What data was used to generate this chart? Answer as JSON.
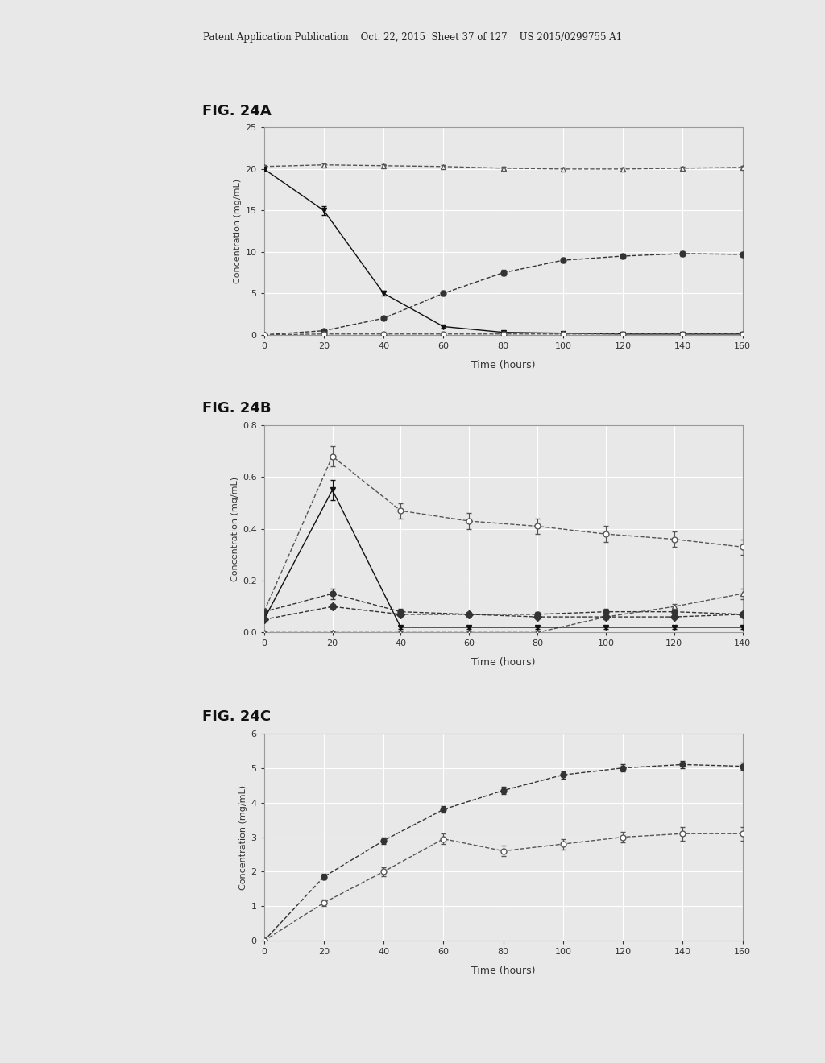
{
  "header_text": "Patent Application Publication    Oct. 22, 2015  Sheet 37 of 127    US 2015/0299755 A1",
  "fig_labels": [
    "FIG. 24A",
    "FIG. 24B",
    "FIG. 24C"
  ],
  "ylabel": "Concentration (mg/mL)",
  "xlabel": "Time (hours)",
  "figA": {
    "xlim": [
      0,
      160
    ],
    "ylim": [
      0,
      25
    ],
    "yticks": [
      0,
      5,
      10,
      15,
      20,
      25
    ],
    "xticks": [
      0,
      20,
      40,
      60,
      80,
      100,
      120,
      140,
      160
    ],
    "series": [
      {
        "name": "triangle_open",
        "x": [
          0,
          20,
          40,
          60,
          80,
          100,
          120,
          140,
          160
        ],
        "y": [
          20.3,
          20.5,
          20.4,
          20.3,
          20.1,
          20.0,
          20.0,
          20.1,
          20.2
        ],
        "yerr": [
          0.2,
          0.2,
          0.2,
          0.2,
          0.2,
          0.2,
          0.2,
          0.2,
          0.2
        ],
        "marker": "^",
        "fillstyle": "none",
        "color": "#555555",
        "linestyle": "--"
      },
      {
        "name": "circle_filled",
        "x": [
          0,
          20,
          40,
          60,
          80,
          100,
          120,
          140,
          160
        ],
        "y": [
          0.0,
          0.5,
          2.0,
          5.0,
          7.5,
          9.0,
          9.5,
          9.8,
          9.7
        ],
        "yerr": [
          0.1,
          0.2,
          0.2,
          0.3,
          0.3,
          0.3,
          0.3,
          0.3,
          0.3
        ],
        "marker": "o",
        "fillstyle": "full",
        "color": "#333333",
        "linestyle": "--"
      },
      {
        "name": "invtriangle_filled",
        "x": [
          0,
          20,
          40,
          60,
          80,
          100,
          120,
          140,
          160
        ],
        "y": [
          20.0,
          15.0,
          5.0,
          1.0,
          0.3,
          0.2,
          0.1,
          0.1,
          0.1
        ],
        "yerr": [
          0.2,
          0.5,
          0.3,
          0.1,
          0.05,
          0.05,
          0.05,
          0.05,
          0.05
        ],
        "marker": "v",
        "fillstyle": "full",
        "color": "#111111",
        "linestyle": "-"
      },
      {
        "name": "circle_open",
        "x": [
          0,
          20,
          40,
          60,
          80,
          100,
          120,
          140,
          160
        ],
        "y": [
          0.0,
          0.1,
          0.1,
          0.1,
          0.1,
          0.1,
          0.1,
          0.1,
          0.1
        ],
        "yerr": [
          0.02,
          0.02,
          0.02,
          0.02,
          0.02,
          0.02,
          0.02,
          0.02,
          0.02
        ],
        "marker": "o",
        "fillstyle": "none",
        "color": "#555555",
        "linestyle": "--"
      }
    ]
  },
  "figB": {
    "xlim": [
      0,
      140
    ],
    "ylim": [
      0.0,
      0.8
    ],
    "yticks": [
      0.0,
      0.2,
      0.4,
      0.6,
      0.8
    ],
    "xticks": [
      0,
      20,
      40,
      60,
      80,
      100,
      120,
      140
    ],
    "series": [
      {
        "name": "circle_open",
        "x": [
          0,
          20,
          40,
          60,
          80,
          100,
          120,
          140
        ],
        "y": [
          0.08,
          0.68,
          0.47,
          0.43,
          0.41,
          0.38,
          0.36,
          0.33
        ],
        "yerr": [
          0.01,
          0.04,
          0.03,
          0.03,
          0.03,
          0.03,
          0.03,
          0.03
        ],
        "marker": "o",
        "fillstyle": "none",
        "color": "#555555",
        "linestyle": "--"
      },
      {
        "name": "circle_filled",
        "x": [
          0,
          20,
          40,
          60,
          80,
          100,
          120,
          140
        ],
        "y": [
          0.08,
          0.15,
          0.08,
          0.07,
          0.07,
          0.08,
          0.08,
          0.07
        ],
        "yerr": [
          0.01,
          0.02,
          0.01,
          0.01,
          0.01,
          0.01,
          0.01,
          0.01
        ],
        "marker": "o",
        "fillstyle": "full",
        "color": "#333333",
        "linestyle": "--"
      },
      {
        "name": "triangle_open",
        "x": [
          0,
          20,
          40,
          60,
          80,
          100,
          120,
          140
        ],
        "y": [
          0.0,
          0.0,
          0.0,
          0.0,
          0.0,
          0.06,
          0.1,
          0.15
        ],
        "yerr": [
          0.005,
          0.005,
          0.005,
          0.005,
          0.005,
          0.01,
          0.01,
          0.02
        ],
        "marker": "^",
        "fillstyle": "none",
        "color": "#555555",
        "linestyle": "--"
      },
      {
        "name": "invtriangle_filled",
        "x": [
          0,
          20,
          40,
          60,
          80,
          100,
          120,
          140
        ],
        "y": [
          0.05,
          0.55,
          0.02,
          0.02,
          0.02,
          0.02,
          0.02,
          0.02
        ],
        "yerr": [
          0.005,
          0.04,
          0.005,
          0.005,
          0.005,
          0.005,
          0.005,
          0.005
        ],
        "marker": "v",
        "fillstyle": "full",
        "color": "#111111",
        "linestyle": "-"
      },
      {
        "name": "diamond_filled",
        "x": [
          0,
          20,
          40,
          60,
          80,
          100,
          120,
          140
        ],
        "y": [
          0.05,
          0.1,
          0.07,
          0.07,
          0.06,
          0.06,
          0.06,
          0.07
        ],
        "yerr": [
          0.005,
          0.01,
          0.005,
          0.005,
          0.005,
          0.005,
          0.005,
          0.005
        ],
        "marker": "D",
        "fillstyle": "full",
        "color": "#333333",
        "linestyle": "--"
      }
    ]
  },
  "figC": {
    "xlim": [
      0,
      160
    ],
    "ylim": [
      0,
      6
    ],
    "yticks": [
      0,
      1,
      2,
      3,
      4,
      5,
      6
    ],
    "xticks": [
      0,
      20,
      40,
      60,
      80,
      100,
      120,
      140,
      160
    ],
    "series": [
      {
        "name": "circle_filled",
        "x": [
          0,
          20,
          40,
          60,
          80,
          100,
          120,
          140,
          160
        ],
        "y": [
          0.0,
          1.85,
          2.9,
          3.8,
          4.35,
          4.8,
          5.0,
          5.1,
          5.05
        ],
        "yerr": [
          0.05,
          0.08,
          0.1,
          0.1,
          0.1,
          0.1,
          0.1,
          0.1,
          0.1
        ],
        "marker": "o",
        "fillstyle": "full",
        "color": "#333333",
        "linestyle": "--"
      },
      {
        "name": "circle_open",
        "x": [
          0,
          20,
          40,
          60,
          80,
          100,
          120,
          140,
          160
        ],
        "y": [
          0.0,
          1.1,
          2.0,
          2.95,
          2.6,
          2.8,
          3.0,
          3.1,
          3.1
        ],
        "yerr": [
          0.05,
          0.1,
          0.12,
          0.15,
          0.15,
          0.15,
          0.15,
          0.2,
          0.2
        ],
        "marker": "o",
        "fillstyle": "none",
        "color": "#555555",
        "linestyle": "--"
      }
    ]
  },
  "bg_color": "#e8e8e8",
  "plot_bg": "#e8e8e8",
  "grid_color": "#ffffff",
  "tick_color": "#333333",
  "axis_color": "#888888"
}
